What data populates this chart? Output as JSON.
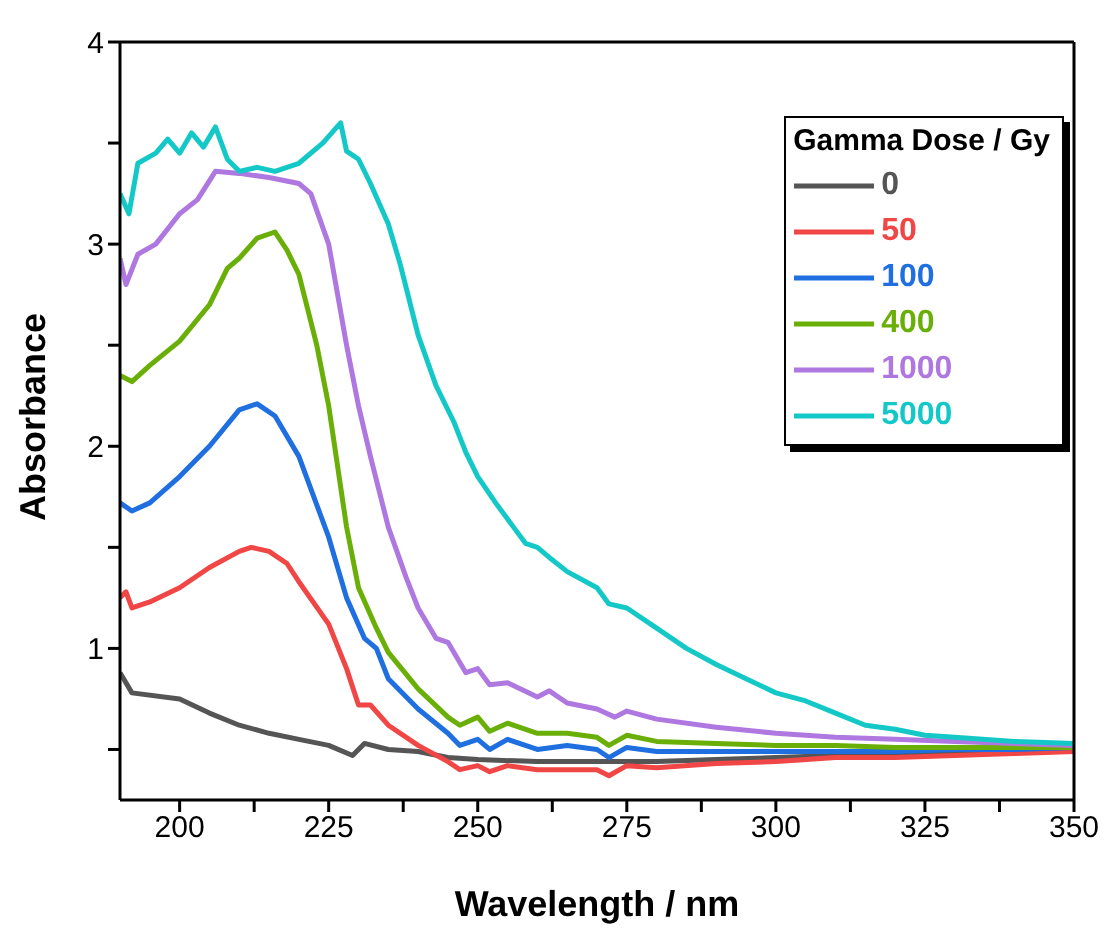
{
  "chart_data": {
    "type": "line",
    "xlabel": "Wavelength / nm",
    "ylabel": "Absorbance",
    "legend_title": "Gamma Dose / Gy",
    "legend": "top right",
    "line_style": "solid",
    "marker": "none",
    "xlim": [
      190,
      350
    ],
    "xticks": [
      200,
      {
        "value": 212.5,
        "label": null
      },
      225,
      {
        "value": 237.5,
        "label": null
      },
      250,
      {
        "value": 262.5,
        "label": null
      },
      275,
      {
        "value": 287.5,
        "label": null
      },
      300,
      {
        "value": 312.5,
        "label": null
      },
      325,
      {
        "value": 337.5,
        "label": null
      },
      350
    ],
    "ylim": [
      0.25,
      4
    ],
    "yticks": [
      {
        "value": 0.5,
        "label": null
      },
      1,
      {
        "value": 1.5,
        "label": null
      },
      2,
      {
        "value": 2.5,
        "label": null
      },
      3,
      {
        "value": 3.5,
        "label": null
      },
      4
    ],
    "series": [
      {
        "name": "0",
        "color": "#555555",
        "x": [
          190,
          192,
          200,
          205,
          210,
          215,
          220,
          225,
          229,
          231,
          235,
          240,
          245,
          250,
          260,
          270,
          275,
          280,
          290,
          300,
          310,
          320,
          330,
          340,
          350
        ],
        "values": [
          0.88,
          0.78,
          0.75,
          0.68,
          0.62,
          0.58,
          0.55,
          0.52,
          0.47,
          0.53,
          0.5,
          0.49,
          0.46,
          0.45,
          0.44,
          0.44,
          0.44,
          0.44,
          0.45,
          0.46,
          0.47,
          0.47,
          0.48,
          0.49,
          0.5
        ]
      },
      {
        "name": "50",
        "color": "#f04646",
        "x": [
          190,
          191,
          192,
          195,
          200,
          205,
          210,
          212,
          215,
          218,
          220,
          225,
          228,
          230,
          232,
          235,
          240,
          245,
          247,
          250,
          252,
          255,
          260,
          265,
          270,
          272,
          275,
          280,
          290,
          300,
          310,
          320,
          330,
          340,
          350
        ],
        "values": [
          1.25,
          1.28,
          1.2,
          1.23,
          1.3,
          1.4,
          1.48,
          1.5,
          1.48,
          1.42,
          1.33,
          1.12,
          0.9,
          0.72,
          0.72,
          0.62,
          0.52,
          0.44,
          0.4,
          0.42,
          0.39,
          0.42,
          0.4,
          0.4,
          0.4,
          0.37,
          0.42,
          0.41,
          0.43,
          0.44,
          0.46,
          0.46,
          0.47,
          0.48,
          0.49
        ]
      },
      {
        "name": "100",
        "color": "#1f6fe0",
        "x": [
          190,
          192,
          195,
          200,
          205,
          210,
          213,
          216,
          220,
          225,
          228,
          231,
          233,
          235,
          240,
          245,
          247,
          250,
          252,
          255,
          260,
          265,
          270,
          272,
          275,
          280,
          290,
          300,
          310,
          320,
          330,
          340,
          350
        ],
        "values": [
          1.72,
          1.68,
          1.72,
          1.85,
          2.0,
          2.18,
          2.21,
          2.15,
          1.95,
          1.55,
          1.25,
          1.05,
          1.0,
          0.85,
          0.7,
          0.58,
          0.52,
          0.55,
          0.5,
          0.55,
          0.5,
          0.52,
          0.5,
          0.46,
          0.51,
          0.49,
          0.49,
          0.49,
          0.49,
          0.49,
          0.5,
          0.5,
          0.51
        ]
      },
      {
        "name": "400",
        "color": "#6aaf08",
        "x": [
          190,
          192,
          195,
          200,
          205,
          208,
          210,
          213,
          216,
          218,
          220,
          223,
          225,
          228,
          230,
          233,
          235,
          240,
          245,
          247,
          250,
          252,
          255,
          260,
          265,
          270,
          272,
          275,
          280,
          290,
          300,
          310,
          320,
          330,
          340,
          350
        ],
        "values": [
          2.35,
          2.32,
          2.4,
          2.52,
          2.7,
          2.88,
          2.93,
          3.03,
          3.06,
          2.97,
          2.85,
          2.5,
          2.2,
          1.6,
          1.3,
          1.1,
          0.98,
          0.8,
          0.66,
          0.62,
          0.66,
          0.59,
          0.63,
          0.58,
          0.58,
          0.56,
          0.52,
          0.57,
          0.54,
          0.53,
          0.52,
          0.52,
          0.51,
          0.51,
          0.51,
          0.51
        ]
      },
      {
        "name": "1000",
        "color": "#ae78e0",
        "x": [
          190,
          191,
          193,
          196,
          200,
          203,
          206,
          210,
          215,
          220,
          222,
          225,
          228,
          230,
          232,
          235,
          238,
          240,
          243,
          245,
          248,
          250,
          252,
          255,
          260,
          262,
          265,
          270,
          273,
          275,
          280,
          290,
          300,
          310,
          320,
          330,
          340,
          350
        ],
        "values": [
          2.93,
          2.8,
          2.95,
          3.0,
          3.15,
          3.22,
          3.36,
          3.35,
          3.33,
          3.3,
          3.25,
          3.0,
          2.5,
          2.2,
          1.95,
          1.6,
          1.35,
          1.2,
          1.05,
          1.03,
          0.88,
          0.9,
          0.82,
          0.83,
          0.76,
          0.79,
          0.73,
          0.7,
          0.66,
          0.69,
          0.65,
          0.61,
          0.58,
          0.56,
          0.55,
          0.54,
          0.53,
          0.52
        ]
      },
      {
        "name": "5000",
        "color": "#14c8c8",
        "x": [
          190,
          191.5,
          193,
          196,
          198,
          200,
          202,
          204,
          206,
          208,
          210,
          213,
          216,
          220,
          224,
          227,
          228,
          230,
          232,
          235,
          237,
          240,
          243,
          246,
          248,
          250,
          253,
          256,
          258,
          260,
          262,
          265,
          270,
          272,
          275,
          280,
          285,
          290,
          295,
          300,
          305,
          310,
          315,
          320,
          325,
          330,
          340,
          350
        ],
        "values": [
          3.25,
          3.15,
          3.4,
          3.45,
          3.52,
          3.45,
          3.55,
          3.48,
          3.58,
          3.42,
          3.36,
          3.38,
          3.36,
          3.4,
          3.5,
          3.6,
          3.46,
          3.42,
          3.3,
          3.1,
          2.9,
          2.55,
          2.3,
          2.12,
          1.97,
          1.85,
          1.72,
          1.6,
          1.52,
          1.5,
          1.45,
          1.38,
          1.3,
          1.22,
          1.2,
          1.1,
          1.0,
          0.92,
          0.85,
          0.78,
          0.74,
          0.68,
          0.62,
          0.6,
          0.57,
          0.56,
          0.54,
          0.53
        ]
      }
    ]
  }
}
